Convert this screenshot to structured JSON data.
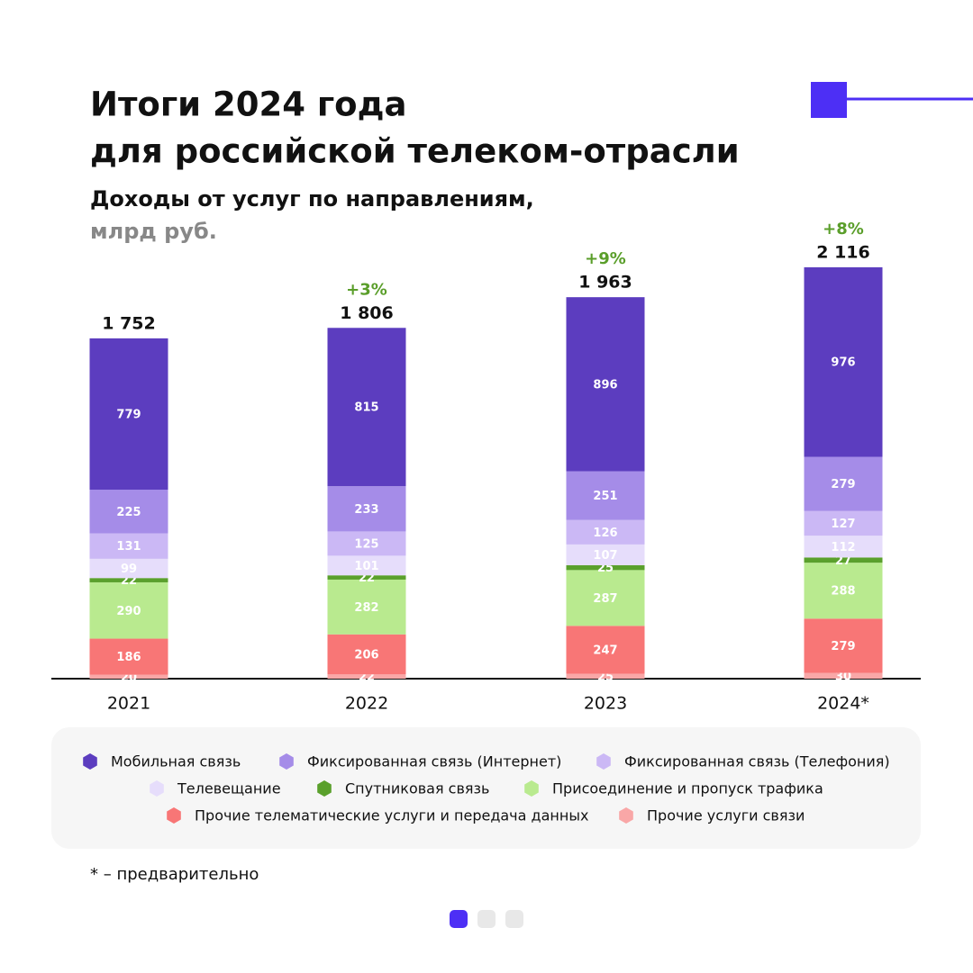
{
  "chart_data": {
    "type": "stacked-bar",
    "title": [
      "Итоги 2024 года",
      "для российской телеком-отрасли"
    ],
    "subtitle": "Доходы от услуг по направлениям,",
    "unit": "млрд руб.",
    "categories": [
      "2021",
      "2022",
      "2023",
      "2024*"
    ],
    "series": [
      {
        "name": "Мобильная связь",
        "color": "#5c3dbf",
        "values": [
          779,
          815,
          896,
          976
        ]
      },
      {
        "name": "Фиксированная связь (Интернет)",
        "color": "#a58ce8",
        "values": [
          225,
          233,
          251,
          279
        ]
      },
      {
        "name": "Фиксированная связь (Телефония)",
        "color": "#cbb8f5",
        "values": [
          131,
          125,
          126,
          127
        ]
      },
      {
        "name": "Телевещание",
        "color": "#e6ddfb",
        "values": [
          99,
          101,
          107,
          112
        ]
      },
      {
        "name": "Спутниковая связь",
        "color": "#5aa02c",
        "values": [
          22,
          22,
          25,
          27
        ]
      },
      {
        "name": "Присоединение и пропуск трафика",
        "color": "#b9ea8f",
        "values": [
          290,
          282,
          287,
          288
        ]
      },
      {
        "name": "Прочие телематические услуги и передача данных",
        "color": "#f87676",
        "values": [
          186,
          206,
          247,
          279
        ]
      },
      {
        "name": "Прочие услуги связи",
        "color": "#f9a7a7",
        "values": [
          20,
          22,
          25,
          30
        ]
      }
    ],
    "totals": [
      1752,
      1806,
      1963,
      2116
    ],
    "totals_labels": [
      "1 752",
      "1 806",
      "1 963",
      "2 116"
    ],
    "growth": [
      null,
      3,
      9,
      8
    ],
    "growth_labels": [
      null,
      "+3%",
      "+9%",
      "+8%"
    ],
    "footnote": "* – предварительно"
  }
}
